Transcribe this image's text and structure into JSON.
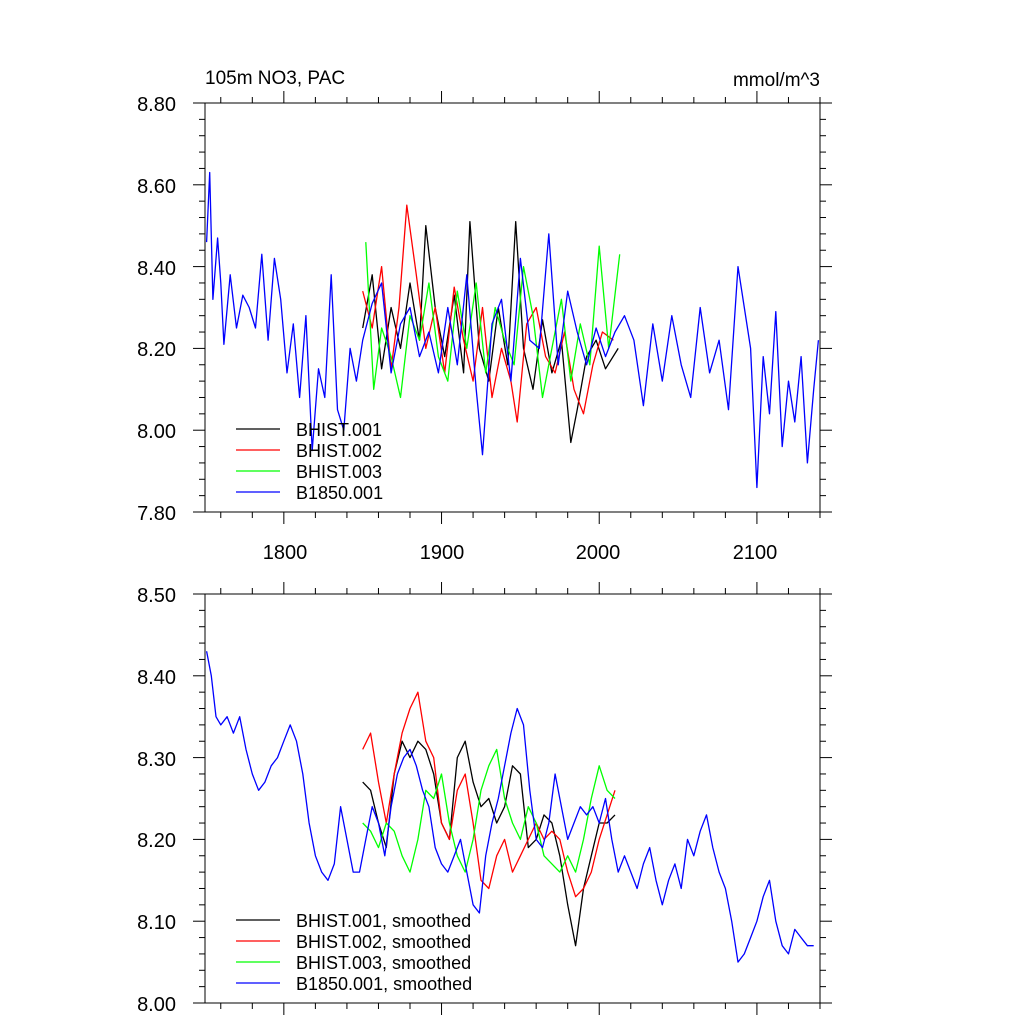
{
  "chart_data": [
    {
      "type": "line",
      "title": "105m NO3, PAC",
      "units": "mmol/m^3",
      "xlim": [
        1750,
        2140
      ],
      "ylim": [
        7.8,
        8.8
      ],
      "xticks": [
        1800,
        1900,
        2000,
        2100
      ],
      "xtick_labels": [
        "1800",
        "1900",
        "2000",
        "2100"
      ],
      "yticks": [
        7.8,
        8.0,
        8.2,
        8.4,
        8.6,
        8.8
      ],
      "ytick_labels": [
        "7.80",
        "8.00",
        "8.20",
        "8.40",
        "8.60",
        "8.80"
      ],
      "legend_position": "bottom-left",
      "series": [
        {
          "name": "BHIST.001",
          "color": "#000000",
          "x": [
            1850,
            1856,
            1862,
            1868,
            1874,
            1880,
            1886,
            1890,
            1896,
            1902,
            1908,
            1914,
            1918,
            1924,
            1930,
            1936,
            1942,
            1947,
            1952,
            1958,
            1964,
            1970,
            1976,
            1982,
            1986,
            1992,
            1998,
            2004,
            2012
          ],
          "y": [
            8.25,
            8.38,
            8.15,
            8.3,
            8.2,
            8.36,
            8.22,
            8.5,
            8.3,
            8.18,
            8.33,
            8.14,
            8.51,
            8.2,
            8.12,
            8.3,
            8.16,
            8.51,
            8.2,
            8.1,
            8.27,
            8.14,
            8.22,
            7.97,
            8.05,
            8.18,
            8.22,
            8.15,
            8.2
          ]
        },
        {
          "name": "BHIST.002",
          "color": "#ff0000",
          "x": [
            1850,
            1856,
            1862,
            1868,
            1873,
            1878,
            1884,
            1890,
            1896,
            1902,
            1908,
            1914,
            1920,
            1926,
            1932,
            1938,
            1944,
            1948,
            1954,
            1960,
            1966,
            1972,
            1978,
            1984,
            1990,
            1996,
            2002,
            2009
          ],
          "y": [
            8.34,
            8.25,
            8.4,
            8.15,
            8.3,
            8.55,
            8.38,
            8.2,
            8.3,
            8.14,
            8.35,
            8.22,
            8.12,
            8.3,
            8.08,
            8.2,
            8.12,
            8.02,
            8.26,
            8.3,
            8.18,
            8.14,
            8.24,
            8.1,
            8.04,
            8.16,
            8.24,
            8.22
          ]
        },
        {
          "name": "BHIST.003",
          "color": "#00ff00",
          "x": [
            1852,
            1857,
            1862,
            1868,
            1874,
            1880,
            1886,
            1892,
            1898,
            1904,
            1910,
            1916,
            1922,
            1928,
            1934,
            1940,
            1946,
            1952,
            1958,
            1964,
            1970,
            1976,
            1982,
            1988,
            1994,
            2000,
            2006,
            2013
          ],
          "y": [
            8.46,
            8.1,
            8.25,
            8.18,
            8.08,
            8.28,
            8.22,
            8.36,
            8.18,
            8.12,
            8.34,
            8.2,
            8.36,
            8.14,
            8.3,
            8.22,
            8.16,
            8.4,
            8.28,
            8.08,
            8.2,
            8.32,
            8.12,
            8.26,
            8.16,
            8.45,
            8.2,
            8.43
          ]
        },
        {
          "name": "B1850.001",
          "color": "#0000ff",
          "x": [
            1751,
            1753,
            1755,
            1758,
            1760,
            1762,
            1766,
            1770,
            1774,
            1778,
            1782,
            1786,
            1790,
            1794,
            1798,
            1802,
            1806,
            1810,
            1814,
            1818,
            1822,
            1826,
            1830,
            1834,
            1838,
            1842,
            1846,
            1850,
            1856,
            1862,
            1868,
            1874,
            1880,
            1886,
            1892,
            1898,
            1904,
            1910,
            1916,
            1922,
            1926,
            1932,
            1938,
            1944,
            1950,
            1956,
            1962,
            1968,
            1974,
            1980,
            1986,
            1992,
            1998,
            2004,
            2010,
            2016,
            2022,
            2028,
            2034,
            2040,
            2046,
            2052,
            2058,
            2064,
            2070,
            2076,
            2082,
            2088,
            2092,
            2096,
            2100,
            2104,
            2108,
            2112,
            2116,
            2120,
            2124,
            2128,
            2132,
            2136,
            2139
          ],
          "y": [
            8.46,
            8.63,
            8.32,
            8.47,
            8.36,
            8.21,
            8.38,
            8.25,
            8.33,
            8.3,
            8.25,
            8.43,
            8.22,
            8.42,
            8.32,
            8.14,
            8.26,
            8.08,
            8.28,
            7.95,
            8.15,
            8.08,
            8.38,
            8.05,
            8.0,
            8.2,
            8.12,
            8.22,
            8.31,
            8.36,
            8.14,
            8.26,
            8.3,
            8.18,
            8.24,
            8.14,
            8.3,
            8.16,
            8.38,
            8.1,
            7.94,
            8.26,
            8.32,
            8.12,
            8.42,
            8.22,
            8.2,
            8.48,
            8.16,
            8.34,
            8.24,
            8.16,
            8.25,
            8.18,
            8.24,
            8.28,
            8.22,
            8.06,
            8.26,
            8.12,
            8.28,
            8.16,
            8.08,
            8.3,
            8.14,
            8.22,
            8.05,
            8.4,
            8.3,
            8.2,
            7.86,
            8.18,
            8.04,
            8.29,
            7.96,
            8.12,
            8.02,
            8.18,
            7.92,
            8.1,
            8.22
          ]
        }
      ]
    },
    {
      "type": "line",
      "title": "",
      "xlim": [
        1750,
        2140
      ],
      "ylim": [
        8.0,
        8.5
      ],
      "xticks": [
        1800,
        1900,
        2000,
        2100
      ],
      "yticks": [
        8.0,
        8.1,
        8.2,
        8.3,
        8.4,
        8.5
      ],
      "ytick_labels": [
        "8.00",
        "8.10",
        "8.20",
        "8.30",
        "8.40",
        "8.50"
      ],
      "legend_position": "bottom-left",
      "series": [
        {
          "name": "BHIST.001, smoothed",
          "color": "#000000",
          "x": [
            1850,
            1855,
            1860,
            1865,
            1870,
            1875,
            1880,
            1885,
            1890,
            1895,
            1900,
            1905,
            1910,
            1915,
            1920,
            1925,
            1930,
            1935,
            1940,
            1945,
            1950,
            1955,
            1960,
            1965,
            1970,
            1975,
            1980,
            1985,
            1990,
            1995,
            2000,
            2005,
            2010
          ],
          "y": [
            8.27,
            8.26,
            8.22,
            8.19,
            8.28,
            8.32,
            8.3,
            8.32,
            8.31,
            8.28,
            8.22,
            8.2,
            8.3,
            8.32,
            8.27,
            8.24,
            8.25,
            8.22,
            8.24,
            8.29,
            8.28,
            8.19,
            8.2,
            8.23,
            8.22,
            8.18,
            8.12,
            8.07,
            8.14,
            8.18,
            8.22,
            8.22,
            8.23
          ]
        },
        {
          "name": "BHIST.002, smoothed",
          "color": "#ff0000",
          "x": [
            1850,
            1855,
            1860,
            1865,
            1870,
            1875,
            1880,
            1885,
            1890,
            1895,
            1900,
            1905,
            1910,
            1915,
            1920,
            1925,
            1930,
            1935,
            1940,
            1945,
            1950,
            1955,
            1960,
            1965,
            1970,
            1975,
            1980,
            1985,
            1990,
            1995,
            2000,
            2005,
            2010
          ],
          "y": [
            8.31,
            8.33,
            8.27,
            8.22,
            8.28,
            8.33,
            8.36,
            8.38,
            8.32,
            8.3,
            8.22,
            8.2,
            8.26,
            8.28,
            8.22,
            8.15,
            8.14,
            8.18,
            8.2,
            8.16,
            8.18,
            8.2,
            8.22,
            8.2,
            8.21,
            8.2,
            8.16,
            8.13,
            8.14,
            8.16,
            8.2,
            8.23,
            8.26
          ]
        },
        {
          "name": "BHIST.003, smoothed",
          "color": "#00ff00",
          "x": [
            1850,
            1855,
            1860,
            1865,
            1870,
            1875,
            1880,
            1885,
            1890,
            1895,
            1900,
            1905,
            1910,
            1915,
            1920,
            1925,
            1930,
            1935,
            1940,
            1945,
            1950,
            1955,
            1960,
            1965,
            1970,
            1975,
            1980,
            1985,
            1990,
            1995,
            2000,
            2005,
            2010
          ],
          "y": [
            8.22,
            8.21,
            8.19,
            8.22,
            8.21,
            8.18,
            8.16,
            8.2,
            8.26,
            8.25,
            8.28,
            8.22,
            8.18,
            8.16,
            8.2,
            8.26,
            8.29,
            8.31,
            8.25,
            8.22,
            8.2,
            8.24,
            8.22,
            8.18,
            8.17,
            8.16,
            8.18,
            8.16,
            8.2,
            8.25,
            8.29,
            8.26,
            8.25
          ]
        },
        {
          "name": "B1850.001, smoothed",
          "color": "#0000ff",
          "x": [
            1751,
            1754,
            1757,
            1760,
            1764,
            1768,
            1772,
            1776,
            1780,
            1784,
            1788,
            1792,
            1796,
            1800,
            1804,
            1808,
            1812,
            1816,
            1820,
            1824,
            1828,
            1832,
            1836,
            1840,
            1844,
            1848,
            1852,
            1856,
            1860,
            1864,
            1868,
            1872,
            1876,
            1880,
            1884,
            1888,
            1892,
            1896,
            1900,
            1904,
            1908,
            1912,
            1916,
            1920,
            1924,
            1928,
            1932,
            1936,
            1940,
            1944,
            1948,
            1952,
            1956,
            1960,
            1964,
            1968,
            1972,
            1976,
            1980,
            1984,
            1988,
            1992,
            1996,
            2000,
            2004,
            2008,
            2012,
            2016,
            2020,
            2024,
            2028,
            2032,
            2036,
            2040,
            2044,
            2048,
            2052,
            2056,
            2060,
            2064,
            2068,
            2072,
            2076,
            2080,
            2084,
            2088,
            2092,
            2096,
            2100,
            2104,
            2108,
            2112,
            2116,
            2120,
            2124,
            2128,
            2132,
            2136
          ],
          "y": [
            8.43,
            8.4,
            8.35,
            8.34,
            8.35,
            8.33,
            8.35,
            8.31,
            8.28,
            8.26,
            8.27,
            8.29,
            8.3,
            8.32,
            8.34,
            8.32,
            8.28,
            8.22,
            8.18,
            8.16,
            8.15,
            8.17,
            8.24,
            8.2,
            8.16,
            8.16,
            8.2,
            8.24,
            8.22,
            8.18,
            8.24,
            8.28,
            8.3,
            8.31,
            8.29,
            8.26,
            8.24,
            8.19,
            8.17,
            8.16,
            8.18,
            8.2,
            8.16,
            8.12,
            8.11,
            8.18,
            8.22,
            8.25,
            8.29,
            8.33,
            8.36,
            8.34,
            8.26,
            8.2,
            8.19,
            8.22,
            8.28,
            8.24,
            8.2,
            8.22,
            8.24,
            8.23,
            8.24,
            8.22,
            8.25,
            8.2,
            8.16,
            8.18,
            8.16,
            8.14,
            8.17,
            8.19,
            8.15,
            8.12,
            8.15,
            8.17,
            8.14,
            8.2,
            8.18,
            8.21,
            8.23,
            8.19,
            8.16,
            8.14,
            8.1,
            8.05,
            8.06,
            8.08,
            8.1,
            8.13,
            8.15,
            8.1,
            8.07,
            8.06,
            8.09,
            8.08,
            8.07,
            8.07
          ]
        }
      ]
    }
  ]
}
